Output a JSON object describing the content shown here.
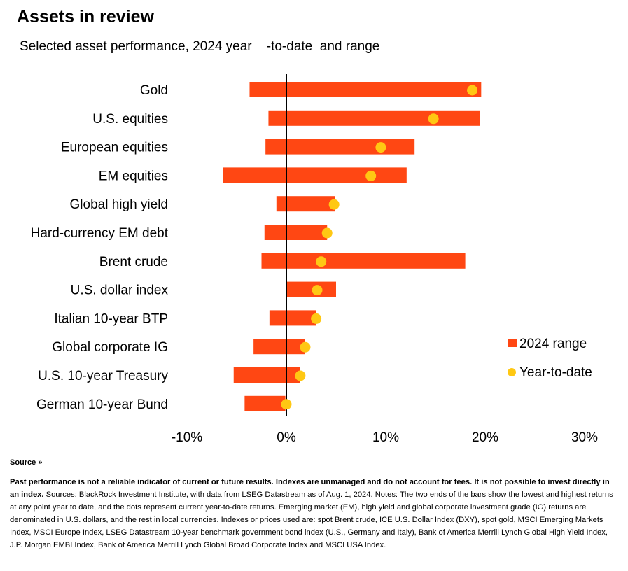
{
  "header": {
    "title": "Assets in review",
    "subtitle": "Selected asset performance, 2024 year    -to-date  and range"
  },
  "chart_data": {
    "type": "bar",
    "orientation": "horizontal",
    "categories": [
      "Gold",
      "U.S. equities",
      "European equities",
      "EM equities",
      "Global high yield",
      "Hard-currency EM debt",
      "Brent crude",
      "U.S. dollar index",
      "Italian 10-year BTP",
      "Global corporate IG",
      "U.S. 10-year Treasury",
      "German 10-year Bund"
    ],
    "series": [
      {
        "name": "2024 range",
        "kind": "range",
        "values": [
          [
            -3.7,
            19.6
          ],
          [
            -1.8,
            19.5
          ],
          [
            -2.1,
            12.9
          ],
          [
            -6.4,
            12.1
          ],
          [
            -1.0,
            4.9
          ],
          [
            -2.2,
            4.1
          ],
          [
            -2.5,
            18.0
          ],
          [
            0.0,
            5.0
          ],
          [
            -1.7,
            3.0
          ],
          [
            -3.3,
            1.9
          ],
          [
            -5.3,
            1.4
          ],
          [
            -4.2,
            -0.1
          ]
        ]
      },
      {
        "name": "Year-to-date",
        "kind": "point",
        "values": [
          18.7,
          14.8,
          9.5,
          8.5,
          4.8,
          4.1,
          3.5,
          3.1,
          3.0,
          1.9,
          1.4,
          0.0
        ]
      }
    ],
    "xlim": [
      -10,
      30
    ],
    "xticks": [
      -10,
      0,
      10,
      20,
      30
    ],
    "xtick_labels": [
      "-10%",
      "0%",
      "10%",
      "20%",
      "30%"
    ],
    "legend_position": "right",
    "colors": {
      "range": "#ff4713",
      "ytd": "#ffc813"
    }
  },
  "footer": {
    "source_label": "Source",
    "source_icon": "double-chevron-down-icon",
    "disclaimer": "Past performance is not a reliable indicator of current or future results. Indexes are unmanaged and do not account for fees. It is not possible to invest directly in an index.",
    "notes": " Sources: BlackRock Investment Institute, with data from LSEG Datastream as of Aug. 1, 2024. Notes: The two ends of the bars show the lowest and highest returns at any point year to date, and the dots represent current year-to-date returns. Emerging market (EM), high yield and global corporate investment grade (IG) returns are denominated in U.S. dollars, and the rest in local currencies. Indexes or prices used are: spot Brent crude, ICE U.S. Dollar Index (DXY), spot gold, MSCI Emerging Markets Index, MSCI Europe Index, LSEG Datastream 10-year benchmark government bond index (U.S., Germany and Italy), Bank of America Merrill Lynch Global High Yield Index, J.P. Morgan EMBI Index, Bank of America Merrill Lynch Global Broad Corporate Index and MSCI USA Index."
  }
}
